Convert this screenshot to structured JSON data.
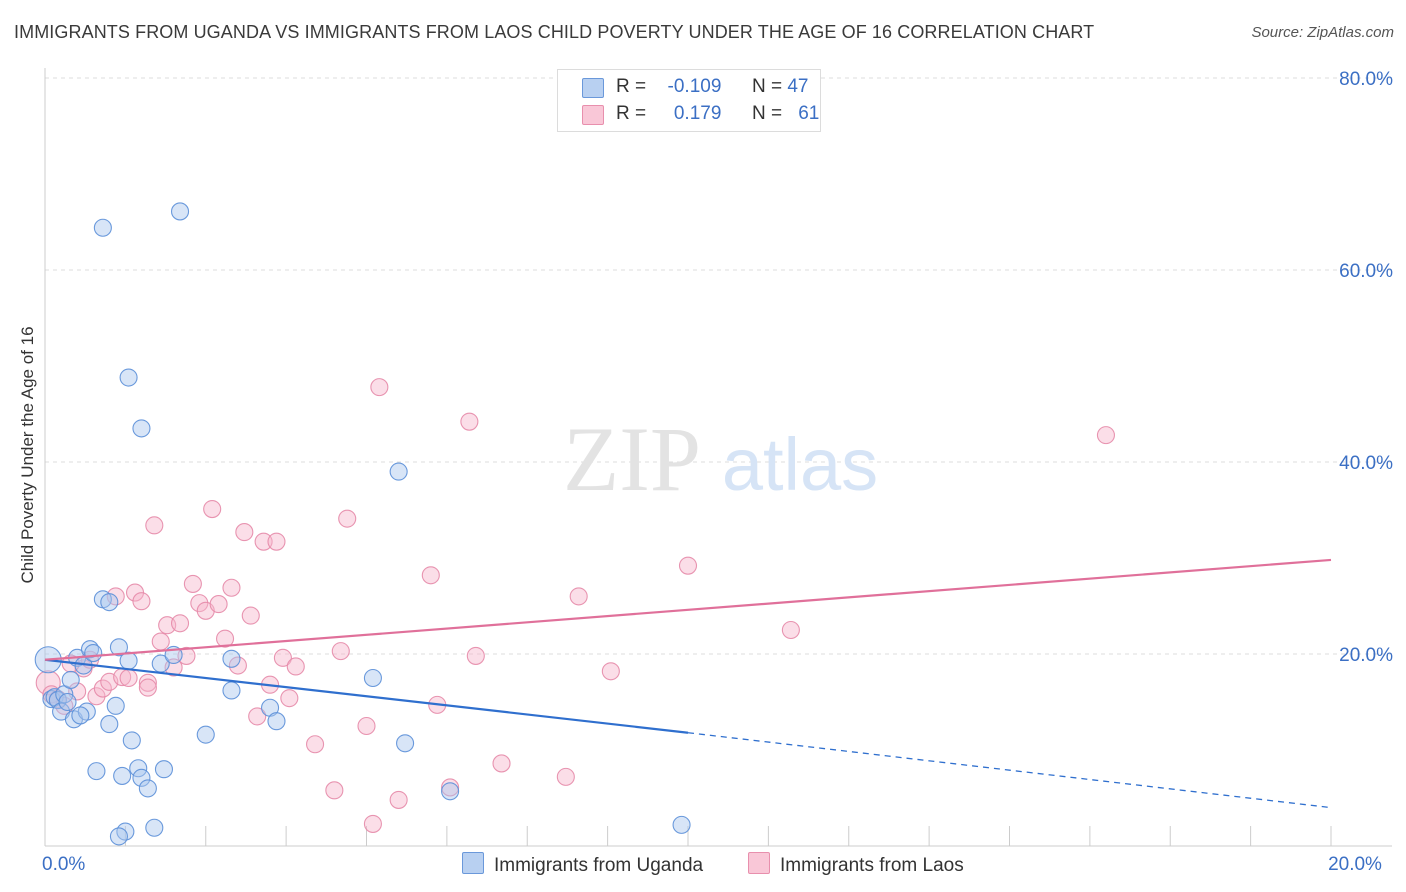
{
  "title": "IMMIGRANTS FROM UGANDA VS IMMIGRANTS FROM LAOS CHILD POVERTY UNDER THE AGE OF 16 CORRELATION CHART",
  "source": "Source: ZipAtlas.com",
  "watermark": {
    "zip": "ZIP",
    "atlas": "atlas"
  },
  "legend_top": [
    {
      "r_label": "R =",
      "r_value": "-0.109",
      "n_label": "N =",
      "n_value": "47"
    },
    {
      "r_label": "R =",
      "r_value": "0.179",
      "n_label": "N =",
      "n_value": "61"
    }
  ],
  "colors": {
    "uganda_fill": "#a9c6ee",
    "uganda_stroke": "#5b8fd8",
    "uganda_line": "#2f6fce",
    "laos_fill": "#f6b6cb",
    "laos_stroke": "#e58aa8",
    "laos_line": "#e0709a",
    "tick_label": "#3b6fc4",
    "grid": "#dddddd"
  },
  "chart_data": {
    "type": "scatter",
    "title": "IMMIGRANTS FROM UGANDA VS IMMIGRANTS FROM LAOS CHILD POVERTY UNDER THE AGE OF 16 CORRELATION CHART",
    "xlabel": "",
    "ylabel": "Child Poverty Under the Age of 16",
    "xlim": [
      0,
      20
    ],
    "ylim": [
      0,
      80
    ],
    "x_ticks": [
      0,
      20
    ],
    "x_tick_labels": [
      "0.0%",
      "20.0%"
    ],
    "y_ticks": [
      20,
      40,
      60,
      80
    ],
    "y_tick_labels": [
      "20.0%",
      "40.0%",
      "60.0%",
      "80.0%"
    ],
    "grid": true,
    "legend_position": "bottom",
    "series": [
      {
        "name": "Immigrants from Uganda",
        "color": "#a9c6ee",
        "trend": {
          "x": [
            0,
            10
          ],
          "y": [
            19.4,
            11.8
          ],
          "dashed_to": [
            20,
            4.0
          ]
        },
        "points": [
          [
            0.05,
            19.4
          ],
          [
            0.1,
            15.3
          ],
          [
            0.15,
            15.5
          ],
          [
            0.2,
            15.2
          ],
          [
            0.25,
            14.0
          ],
          [
            0.3,
            15.8
          ],
          [
            0.35,
            15.0
          ],
          [
            0.4,
            17.3
          ],
          [
            0.45,
            13.2
          ],
          [
            0.5,
            19.6
          ],
          [
            0.6,
            18.8
          ],
          [
            0.65,
            14.0
          ],
          [
            0.7,
            20.5
          ],
          [
            0.75,
            20.1
          ],
          [
            0.8,
            7.8
          ],
          [
            0.9,
            25.7
          ],
          [
            1.0,
            25.4
          ],
          [
            1.0,
            12.7
          ],
          [
            1.1,
            14.6
          ],
          [
            1.15,
            20.7
          ],
          [
            1.25,
            1.5
          ],
          [
            1.2,
            7.3
          ],
          [
            1.3,
            19.3
          ],
          [
            1.35,
            11.0
          ],
          [
            1.45,
            8.1
          ],
          [
            1.5,
            7.1
          ],
          [
            1.6,
            6.0
          ],
          [
            1.7,
            1.9
          ],
          [
            1.8,
            19.0
          ],
          [
            1.85,
            8.0
          ],
          [
            2.0,
            19.9
          ],
          [
            1.3,
            48.8
          ],
          [
            1.5,
            43.5
          ],
          [
            0.9,
            64.4
          ],
          [
            2.1,
            66.1
          ],
          [
            2.5,
            11.6
          ],
          [
            2.9,
            19.5
          ],
          [
            2.9,
            16.2
          ],
          [
            3.5,
            14.4
          ],
          [
            3.6,
            13.0
          ],
          [
            5.1,
            17.5
          ],
          [
            5.5,
            39.0
          ],
          [
            5.6,
            10.7
          ],
          [
            6.3,
            5.7
          ],
          [
            9.9,
            2.2
          ],
          [
            1.15,
            1.0
          ],
          [
            0.55,
            13.6
          ]
        ]
      },
      {
        "name": "Immigrants from Laos",
        "color": "#f6b6cb",
        "trend": {
          "x": [
            0,
            20
          ],
          "y": [
            19.4,
            29.8
          ]
        },
        "points": [
          [
            0.05,
            17.0
          ],
          [
            0.1,
            15.8
          ],
          [
            0.2,
            15.3
          ],
          [
            0.3,
            14.6
          ],
          [
            0.5,
            16.1
          ],
          [
            0.6,
            18.5
          ],
          [
            0.7,
            19.4
          ],
          [
            0.8,
            15.6
          ],
          [
            0.9,
            16.4
          ],
          [
            1.0,
            17.1
          ],
          [
            1.1,
            26.0
          ],
          [
            1.2,
            17.6
          ],
          [
            1.3,
            17.5
          ],
          [
            1.4,
            26.4
          ],
          [
            1.5,
            25.5
          ],
          [
            1.6,
            17.0
          ],
          [
            1.7,
            33.4
          ],
          [
            1.8,
            21.3
          ],
          [
            1.9,
            23.0
          ],
          [
            2.0,
            18.6
          ],
          [
            2.1,
            23.2
          ],
          [
            2.2,
            19.8
          ],
          [
            2.3,
            27.3
          ],
          [
            2.4,
            25.3
          ],
          [
            2.5,
            24.5
          ],
          [
            2.6,
            35.1
          ],
          [
            2.7,
            25.2
          ],
          [
            2.8,
            21.6
          ],
          [
            2.9,
            26.9
          ],
          [
            3.0,
            18.8
          ],
          [
            3.1,
            32.7
          ],
          [
            3.2,
            24.0
          ],
          [
            3.3,
            13.5
          ],
          [
            3.4,
            31.7
          ],
          [
            3.5,
            16.8
          ],
          [
            3.6,
            31.7
          ],
          [
            3.7,
            19.6
          ],
          [
            3.8,
            15.4
          ],
          [
            3.9,
            18.7
          ],
          [
            4.2,
            10.6
          ],
          [
            4.5,
            5.8
          ],
          [
            4.6,
            20.3
          ],
          [
            4.7,
            34.1
          ],
          [
            5.0,
            12.5
          ],
          [
            5.1,
            2.3
          ],
          [
            5.2,
            47.8
          ],
          [
            5.5,
            4.8
          ],
          [
            6.0,
            28.2
          ],
          [
            6.1,
            14.7
          ],
          [
            6.3,
            6.1
          ],
          [
            6.6,
            44.2
          ],
          [
            6.7,
            19.8
          ],
          [
            7.1,
            8.6
          ],
          [
            8.1,
            7.2
          ],
          [
            8.3,
            26.0
          ],
          [
            8.8,
            18.2
          ],
          [
            10.0,
            29.2
          ],
          [
            11.6,
            22.5
          ],
          [
            16.5,
            42.8
          ],
          [
            0.4,
            19.0
          ],
          [
            1.6,
            16.5
          ]
        ]
      }
    ]
  },
  "legend_bottom": [
    "Immigrants from Uganda",
    "Immigrants from Laos"
  ]
}
